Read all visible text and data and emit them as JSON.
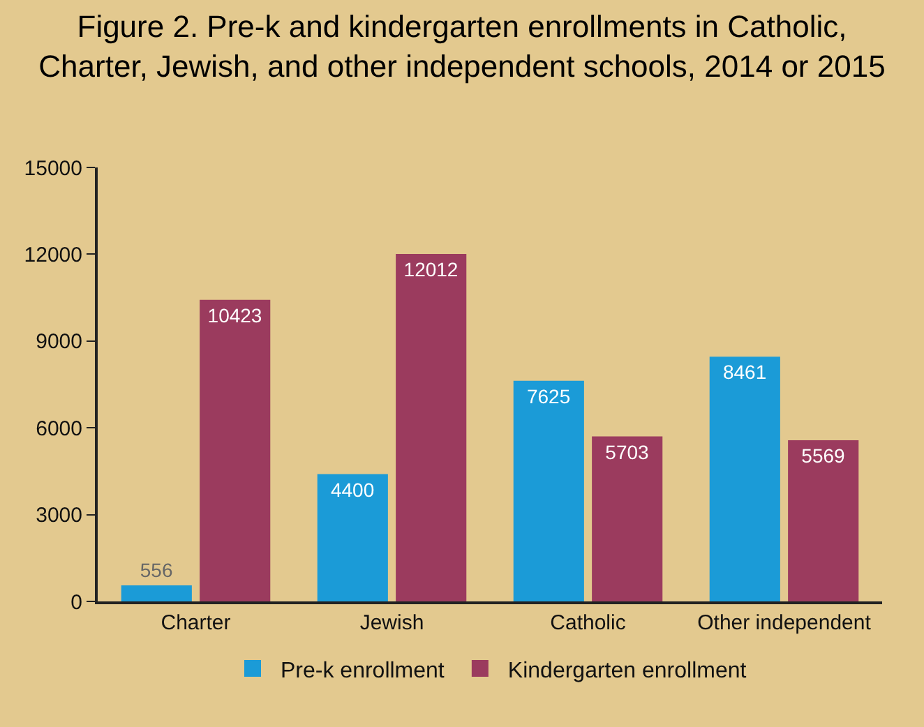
{
  "chart_data": {
    "type": "bar",
    "title": "Figure 2. Pre-k and kindergarten enrollments in Catholic,\nCharter, Jewish, and other independent schools, 2014 or 2015",
    "categories": [
      "Charter",
      "Jewish",
      "Catholic",
      "Other independent"
    ],
    "series": [
      {
        "name": "Pre-k enrollment",
        "color": "#1b9bd7",
        "values": [
          556,
          4400,
          7625,
          8461
        ]
      },
      {
        "name": "Kindergarten enrollment",
        "color": "#9b3b5e",
        "values": [
          10423,
          12012,
          5703,
          5569
        ]
      }
    ],
    "ylim": [
      0,
      15000
    ],
    "yticks": [
      0,
      3000,
      6000,
      9000,
      12000,
      15000
    ],
    "grid": false,
    "legend": "bottom",
    "data_labels": true
  }
}
